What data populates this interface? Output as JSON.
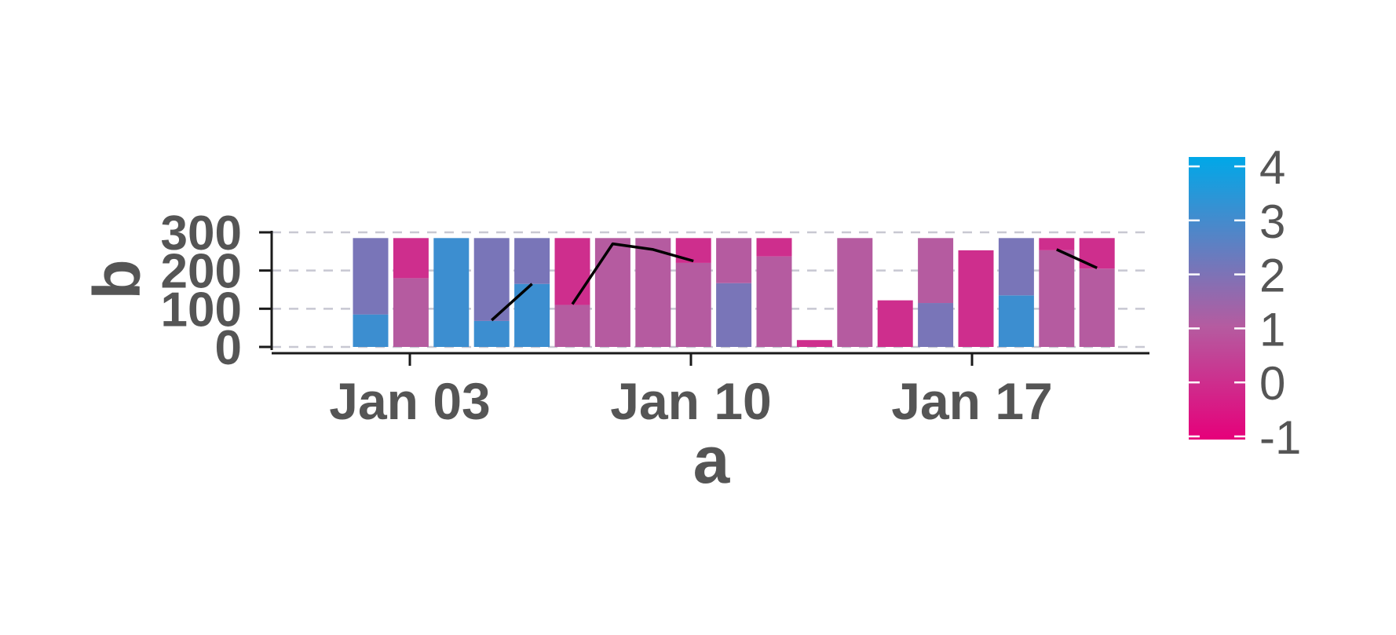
{
  "chart_data": {
    "type": "bar",
    "xlabel": "a",
    "ylabel": "b",
    "x_tick_labels": [
      "Jan 03",
      "Jan 10",
      "Jan 17"
    ],
    "y_ticks": [
      0,
      100,
      200,
      300
    ],
    "ylim": [
      0,
      300
    ],
    "grid": "horizontal dashed",
    "colorbar": {
      "ticks": [
        "4",
        "3",
        "2",
        "1",
        "0",
        "-1"
      ],
      "range": [
        -1,
        4
      ],
      "low_color": "#e6007a",
      "mid_color": "#b55ba0",
      "high_color": "#00a8e8"
    },
    "bars": [
      {
        "date": "2024-01-01",
        "segments": [
          {
            "value": 85,
            "color_value": 3.0
          },
          {
            "value": 200,
            "color_value": 2.0
          }
        ]
      },
      {
        "date": "2024-01-02",
        "segments": [
          {
            "value": 180,
            "color_value": 1.0
          },
          {
            "value": 105,
            "color_value": 0.0
          }
        ]
      },
      {
        "date": "2024-01-03",
        "segments": [
          {
            "value": 285,
            "color_value": 3.0
          }
        ]
      },
      {
        "date": "2024-01-04",
        "segments": [
          {
            "value": 68,
            "color_value": 3.0
          },
          {
            "value": 217,
            "color_value": 2.0
          }
        ]
      },
      {
        "date": "2024-01-05",
        "segments": [
          {
            "value": 165,
            "color_value": 3.0
          },
          {
            "value": 120,
            "color_value": 2.0
          }
        ]
      },
      {
        "date": "2024-01-06",
        "segments": [
          {
            "value": 110,
            "color_value": 1.0
          },
          {
            "value": 175,
            "color_value": 0.0
          }
        ]
      },
      {
        "date": "2024-01-07",
        "segments": [
          {
            "value": 285,
            "color_value": 1.0
          }
        ]
      },
      {
        "date": "2024-01-08",
        "segments": [
          {
            "value": 285,
            "color_value": 1.0
          }
        ]
      },
      {
        "date": "2024-01-09",
        "segments": [
          {
            "value": 220,
            "color_value": 1.0
          },
          {
            "value": 65,
            "color_value": 0.0
          }
        ]
      },
      {
        "date": "2024-01-10",
        "segments": [
          {
            "value": 167,
            "color_value": 2.0
          },
          {
            "value": 118,
            "color_value": 1.0
          }
        ]
      },
      {
        "date": "2024-01-11",
        "segments": [
          {
            "value": 237,
            "color_value": 1.0
          },
          {
            "value": 48,
            "color_value": 0.0
          }
        ]
      },
      {
        "date": "2024-01-12",
        "segments": [
          {
            "value": 18,
            "color_value": 0.0
          }
        ]
      },
      {
        "date": "2024-01-13",
        "segments": [
          {
            "value": 285,
            "color_value": 1.0
          }
        ]
      },
      {
        "date": "2024-01-14",
        "segments": [
          {
            "value": 122,
            "color_value": 0.0
          }
        ]
      },
      {
        "date": "2024-01-15",
        "segments": [
          {
            "value": 115,
            "color_value": 2.0
          },
          {
            "value": 170,
            "color_value": 1.0
          }
        ]
      },
      {
        "date": "2024-01-16",
        "segments": [
          {
            "value": 253,
            "color_value": 0.0
          }
        ]
      },
      {
        "date": "2024-01-17",
        "segments": [
          {
            "value": 135,
            "color_value": 3.0
          },
          {
            "value": 150,
            "color_value": 2.0
          }
        ]
      },
      {
        "date": "2024-01-18",
        "segments": [
          {
            "value": 253,
            "color_value": 1.0
          },
          {
            "value": 32,
            "color_value": 0.0
          }
        ]
      },
      {
        "date": "2024-01-19",
        "segments": [
          {
            "value": 205,
            "color_value": 1.0
          },
          {
            "value": 80,
            "color_value": 0.0
          }
        ]
      }
    ],
    "line_series": [
      [
        {
          "date": "2024-01-04",
          "value": 70
        },
        {
          "date": "2024-01-05",
          "value": 165
        }
      ],
      [
        {
          "date": "2024-01-06",
          "value": 112
        },
        {
          "date": "2024-01-07",
          "value": 270
        },
        {
          "date": "2024-01-08",
          "value": 255
        },
        {
          "date": "2024-01-09",
          "value": 225
        }
      ],
      [
        {
          "date": "2024-01-18",
          "value": 255
        },
        {
          "date": "2024-01-19",
          "value": 207
        }
      ]
    ]
  }
}
